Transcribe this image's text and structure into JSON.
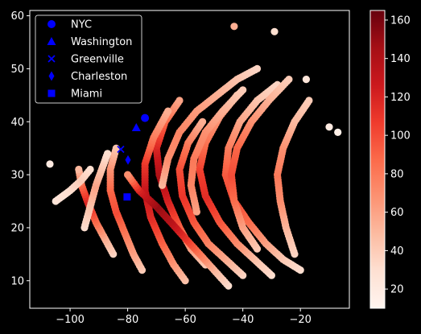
{
  "chart_data": {
    "type": "scatter",
    "title": "",
    "xlabel": "",
    "ylabel": "",
    "xlim": [
      -114,
      -3
    ],
    "ylim": [
      4.8,
      61
    ],
    "x_ticks": [
      -100,
      -80,
      -60,
      -40,
      -20
    ],
    "y_ticks": [
      10,
      20,
      30,
      40,
      50,
      60
    ],
    "grid": false,
    "colormap": "Reds",
    "colorbar": {
      "range": [
        10,
        165
      ],
      "ticks": [
        20,
        40,
        60,
        80,
        100,
        120,
        140,
        160
      ]
    },
    "legend": {
      "placement": "top-left",
      "entries": [
        {
          "name": "NYC",
          "marker": "circle",
          "color": "#0000ff",
          "x": -74.0,
          "y": 40.7
        },
        {
          "name": "Washington",
          "marker": "triangle",
          "color": "#0000ff",
          "x": -77.0,
          "y": 38.9
        },
        {
          "name": "Greenville",
          "marker": "x",
          "color": "#0000ff",
          "x": -82.4,
          "y": 34.8
        },
        {
          "name": "Charleston",
          "marker": "diamond",
          "color": "#0000ff",
          "x": -79.9,
          "y": 32.8
        },
        {
          "name": "Miami",
          "marker": "square",
          "color": "#0000ff",
          "x": -80.2,
          "y": 25.8
        }
      ]
    },
    "hurricane_tracks": [
      {
        "points": [
          [
            -53,
            13
          ],
          [
            -58,
            16
          ],
          [
            -62,
            20
          ],
          [
            -66,
            25
          ],
          [
            -69,
            30
          ],
          [
            -70,
            35
          ],
          [
            -67,
            40
          ],
          [
            -62,
            44
          ]
        ],
        "wind": [
          40,
          60,
          90,
          120,
          140,
          120,
          90,
          60
        ]
      },
      {
        "points": [
          [
            -40,
            11
          ],
          [
            -46,
            14
          ],
          [
            -52,
            17
          ],
          [
            -57,
            21
          ],
          [
            -61,
            26
          ],
          [
            -62,
            31
          ],
          [
            -59,
            36
          ],
          [
            -54,
            40
          ]
        ],
        "wind": [
          35,
          55,
          75,
          95,
          110,
          100,
          80,
          55
        ]
      },
      {
        "points": [
          [
            -30,
            11
          ],
          [
            -36,
            14
          ],
          [
            -42,
            17
          ],
          [
            -48,
            21
          ],
          [
            -53,
            26
          ],
          [
            -55,
            31
          ],
          [
            -53,
            36
          ],
          [
            -48,
            41
          ],
          [
            -42,
            45
          ]
        ],
        "wind": [
          30,
          45,
          70,
          95,
          115,
          105,
          85,
          65,
          45
        ]
      },
      {
        "points": [
          [
            -60,
            10
          ],
          [
            -64,
            13
          ],
          [
            -68,
            17
          ],
          [
            -72,
            22
          ],
          [
            -74,
            27
          ],
          [
            -74,
            32
          ],
          [
            -71,
            37
          ],
          [
            -66,
            42
          ]
        ],
        "wind": [
          45,
          65,
          90,
          115,
          130,
          110,
          80,
          55
        ]
      },
      {
        "points": [
          [
            -75,
            12
          ],
          [
            -78,
            15
          ],
          [
            -81,
            19
          ],
          [
            -84,
            23
          ],
          [
            -86,
            27
          ],
          [
            -86,
            31
          ],
          [
            -84,
            35
          ]
        ],
        "wind": [
          40,
          60,
          80,
          100,
          90,
          70,
          45
        ]
      },
      {
        "points": [
          [
            -85,
            15
          ],
          [
            -88,
            18
          ],
          [
            -91,
            21
          ],
          [
            -94,
            25
          ],
          [
            -96,
            28
          ],
          [
            -97,
            31
          ]
        ],
        "wind": [
          35,
          55,
          85,
          120,
          90,
          50
        ]
      },
      {
        "points": [
          [
            -20,
            12
          ],
          [
            -26,
            14
          ],
          [
            -32,
            17
          ],
          [
            -38,
            21
          ],
          [
            -43,
            25
          ],
          [
            -46,
            30
          ],
          [
            -45,
            35
          ],
          [
            -41,
            40
          ],
          [
            -35,
            44
          ],
          [
            -28,
            47
          ]
        ],
        "wind": [
          30,
          40,
          60,
          85,
          100,
          95,
          80,
          60,
          45,
          35
        ]
      },
      {
        "points": [
          [
            -45,
            9
          ],
          [
            -50,
            12
          ],
          [
            -55,
            15
          ],
          [
            -60,
            18
          ],
          [
            -65,
            21
          ],
          [
            -70,
            24
          ],
          [
            -76,
            27
          ],
          [
            -80,
            30
          ]
        ],
        "wind": [
          30,
          50,
          80,
          110,
          135,
          150,
          120,
          70
        ]
      },
      {
        "points": [
          [
            -35,
            16
          ],
          [
            -40,
            20
          ],
          [
            -43,
            25
          ],
          [
            -44,
            30
          ],
          [
            -42,
            35
          ],
          [
            -37,
            40
          ],
          [
            -31,
            44
          ],
          [
            -24,
            48
          ]
        ],
        "wind": [
          40,
          60,
          85,
          100,
          90,
          70,
          55,
          40
        ]
      },
      {
        "points": [
          [
            -22,
            15
          ],
          [
            -25,
            20
          ],
          [
            -27,
            25
          ],
          [
            -28,
            30
          ],
          [
            -26,
            35
          ],
          [
            -22,
            40
          ],
          [
            -17,
            44
          ]
        ],
        "wind": [
          35,
          50,
          70,
          80,
          70,
          50,
          40
        ]
      },
      {
        "points": [
          [
            -68,
            28
          ],
          [
            -66,
            33
          ],
          [
            -62,
            38
          ],
          [
            -56,
            42
          ],
          [
            -49,
            45
          ],
          [
            -42,
            48
          ],
          [
            -35,
            50
          ]
        ],
        "wind": [
          50,
          70,
          75,
          65,
          55,
          45,
          35
        ]
      },
      {
        "points": [
          [
            -95,
            20
          ],
          [
            -93,
            24
          ],
          [
            -91,
            28
          ],
          [
            -89,
            31
          ],
          [
            -87,
            34
          ]
        ],
        "wind": [
          30,
          45,
          60,
          45,
          30
        ]
      },
      {
        "points": [
          [
            -105,
            25
          ],
          [
            -100,
            27
          ],
          [
            -96,
            29
          ],
          [
            -93,
            31
          ]
        ],
        "wind": [
          25,
          30,
          40,
          30
        ]
      },
      {
        "points": [
          [
            -56,
            23
          ],
          [
            -58,
            28
          ],
          [
            -57,
            33
          ],
          [
            -53,
            38
          ],
          [
            -47,
            42
          ],
          [
            -40,
            46
          ]
        ],
        "wind": [
          60,
          75,
          80,
          70,
          55,
          40
        ]
      }
    ],
    "isolated_points": [
      {
        "x": -43,
        "y": 58,
        "wind": 55
      },
      {
        "x": -29,
        "y": 57,
        "wind": 30
      },
      {
        "x": -10,
        "y": 39,
        "wind": 20
      },
      {
        "x": -7,
        "y": 38,
        "wind": 15
      },
      {
        "x": -107,
        "y": 32,
        "wind": 20
      },
      {
        "x": -18,
        "y": 48,
        "wind": 25
      }
    ]
  }
}
